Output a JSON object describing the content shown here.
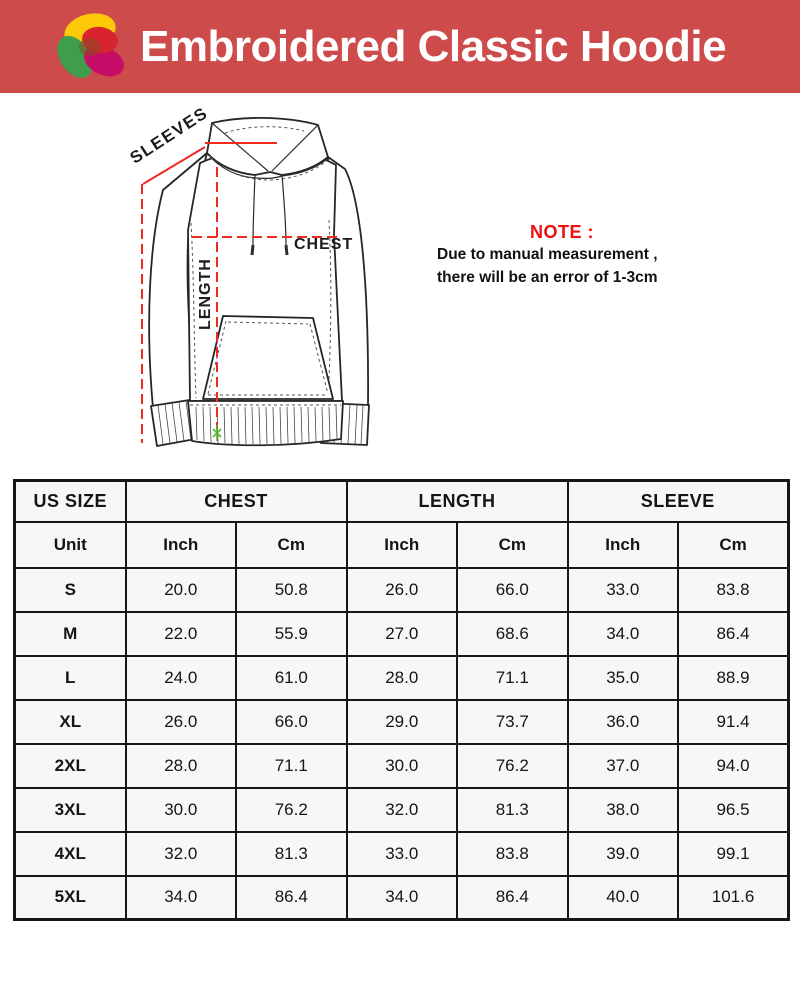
{
  "banner": {
    "title": "Embroidered Classic Hoodie",
    "bg_color": "#cd4b4b",
    "logo_colors": {
      "yellow": "#fdc906",
      "red": "#d8242f",
      "green": "#3f9e49",
      "magenta": "#c60d67"
    }
  },
  "diagram": {
    "sleeves_label": "SLEEVES",
    "chest_label": "CHEST",
    "length_label": "LENGTH",
    "measure_line_color": "#ee2a21"
  },
  "note": {
    "title": "NOTE :",
    "title_color": "#ee0f0f",
    "lines": [
      "Due to manual measurement ,",
      "there will be an error of 1-3cm"
    ]
  },
  "size_chart": {
    "groups": [
      "US SIZE",
      "CHEST",
      "LENGTH",
      "SLEEVE"
    ],
    "unit_row": {
      "label": "Unit",
      "cols": [
        "Inch",
        "Cm",
        "Inch",
        "Cm",
        "Inch",
        "Cm"
      ]
    },
    "rows": [
      {
        "size": "S",
        "values": [
          "20.0",
          "50.8",
          "26.0",
          "66.0",
          "33.0",
          "83.8"
        ]
      },
      {
        "size": "M",
        "values": [
          "22.0",
          "55.9",
          "27.0",
          "68.6",
          "34.0",
          "86.4"
        ]
      },
      {
        "size": "L",
        "values": [
          "24.0",
          "61.0",
          "28.0",
          "71.1",
          "35.0",
          "88.9"
        ]
      },
      {
        "size": "XL",
        "values": [
          "26.0",
          "66.0",
          "29.0",
          "73.7",
          "36.0",
          "91.4"
        ]
      },
      {
        "size": "2XL",
        "values": [
          "28.0",
          "71.1",
          "30.0",
          "76.2",
          "37.0",
          "94.0"
        ]
      },
      {
        "size": "3XL",
        "values": [
          "30.0",
          "76.2",
          "32.0",
          "81.3",
          "38.0",
          "96.5"
        ]
      },
      {
        "size": "4XL",
        "values": [
          "32.0",
          "81.3",
          "33.0",
          "83.8",
          "39.0",
          "99.1"
        ]
      },
      {
        "size": "5XL",
        "values": [
          "34.0",
          "86.4",
          "34.0",
          "86.4",
          "40.0",
          "101.6"
        ]
      }
    ]
  }
}
